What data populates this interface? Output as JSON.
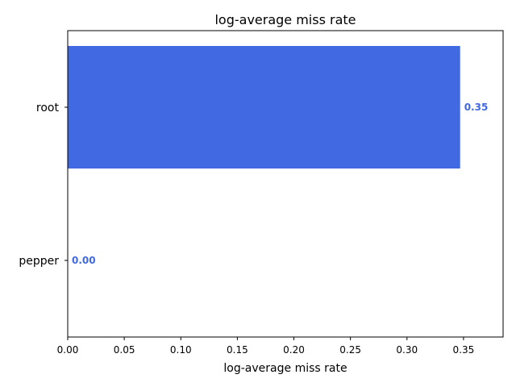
{
  "chart_data": {
    "type": "bar",
    "orientation": "horizontal",
    "title": "log-average miss rate",
    "xlabel": "log-average miss rate",
    "ylabel": "",
    "categories": [
      "root",
      "pepper"
    ],
    "values": [
      0.347,
      0.0
    ],
    "value_labels": [
      "0.35",
      "0.00"
    ],
    "xlim": [
      0,
      0.385
    ],
    "x_ticks": [
      0.0,
      0.05,
      0.1,
      0.15,
      0.2,
      0.25,
      0.3,
      0.35
    ],
    "x_tick_labels": [
      "0.00",
      "0.05",
      "0.10",
      "0.15",
      "0.20",
      "0.25",
      "0.30",
      "0.35"
    ],
    "grid": false,
    "legend": "none",
    "bar_color": "#4169e1",
    "label_color": "#4169e1"
  }
}
